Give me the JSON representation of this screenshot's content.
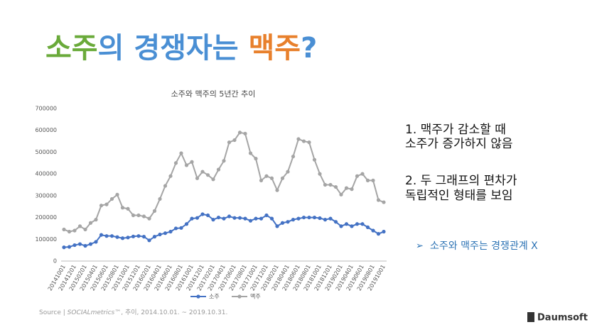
{
  "slide_title": [
    {
      "text": "소주",
      "color": "#6aaa3a"
    },
    {
      "text": "의 경쟁자는 ",
      "color": "#4a8fd4"
    },
    {
      "text": "맥주",
      "color": "#e8802c"
    },
    {
      "text": "?",
      "color": "#4a8fd4"
    }
  ],
  "chart_data": {
    "type": "line",
    "title": "소주와 맥주의 5년간 추이",
    "categories": [
      "20141001",
      null,
      "20141201",
      null,
      "20150201",
      null,
      "20150401",
      null,
      "20150601",
      null,
      "20150801",
      null,
      "20151001",
      null,
      "20151201",
      null,
      "20160201",
      null,
      "20160401",
      null,
      "20160601",
      null,
      "20160801",
      null,
      "20161001",
      null,
      "20161201",
      null,
      "20170201",
      null,
      "20170401",
      null,
      "20170601",
      null,
      "20170801",
      null,
      "20171001",
      null,
      "20171201",
      null,
      "20180201",
      null,
      "20180401",
      null,
      "20180601",
      null,
      "20180801",
      null,
      "20181001",
      null,
      "20181201",
      null,
      "20190201",
      null,
      "20190401",
      null,
      "20190601",
      null,
      "20190801",
      null,
      "20191001"
    ],
    "series": [
      {
        "name": "소주",
        "color": "#4472c4",
        "values": [
          63000,
          65000,
          73000,
          78000,
          70000,
          78000,
          88000,
          120000,
          115000,
          115000,
          110000,
          105000,
          108000,
          113000,
          115000,
          112000,
          95000,
          112000,
          122000,
          128000,
          135000,
          150000,
          152000,
          170000,
          195000,
          198000,
          215000,
          210000,
          190000,
          200000,
          195000,
          205000,
          198000,
          198000,
          195000,
          185000,
          195000,
          195000,
          210000,
          195000,
          160000,
          175000,
          180000,
          190000,
          195000,
          200000,
          200000,
          200000,
          197000,
          190000,
          195000,
          180000,
          160000,
          170000,
          160000,
          170000,
          170000,
          155000,
          140000,
          125000,
          135000
        ]
      },
      {
        "name": "맥주",
        "color": "#a5a5a5",
        "values": [
          145000,
          135000,
          140000,
          160000,
          145000,
          175000,
          190000,
          255000,
          260000,
          285000,
          305000,
          245000,
          240000,
          210000,
          210000,
          205000,
          195000,
          230000,
          285000,
          345000,
          390000,
          450000,
          495000,
          440000,
          455000,
          380000,
          410000,
          395000,
          375000,
          420000,
          460000,
          545000,
          555000,
          590000,
          585000,
          495000,
          470000,
          370000,
          390000,
          380000,
          325000,
          380000,
          410000,
          480000,
          560000,
          550000,
          545000,
          465000,
          400000,
          350000,
          350000,
          340000,
          305000,
          335000,
          330000,
          390000,
          400000,
          370000,
          370000,
          280000,
          270000
        ]
      }
    ],
    "ylim": [
      0,
      700000
    ],
    "yticks": [
      0,
      100000,
      200000,
      300000,
      400000,
      500000,
      600000,
      700000
    ],
    "legend": "bottom"
  },
  "notes": [
    [
      "1. 맥주가 감소할 때",
      "소주가 증가하지 않음"
    ],
    [
      "2. 두 그래프의 편차가",
      "독립적인 형태를 보임"
    ]
  ],
  "conclusion": {
    "bullet": "➢",
    "text": "소주와 맥주는 경쟁관계 X"
  },
  "source": [
    "Source | ",
    "SOCIALmetrics™",
    ", 추이, 2014.10.01. ~ 2019.10.31."
  ],
  "logo": "Daumsoft"
}
